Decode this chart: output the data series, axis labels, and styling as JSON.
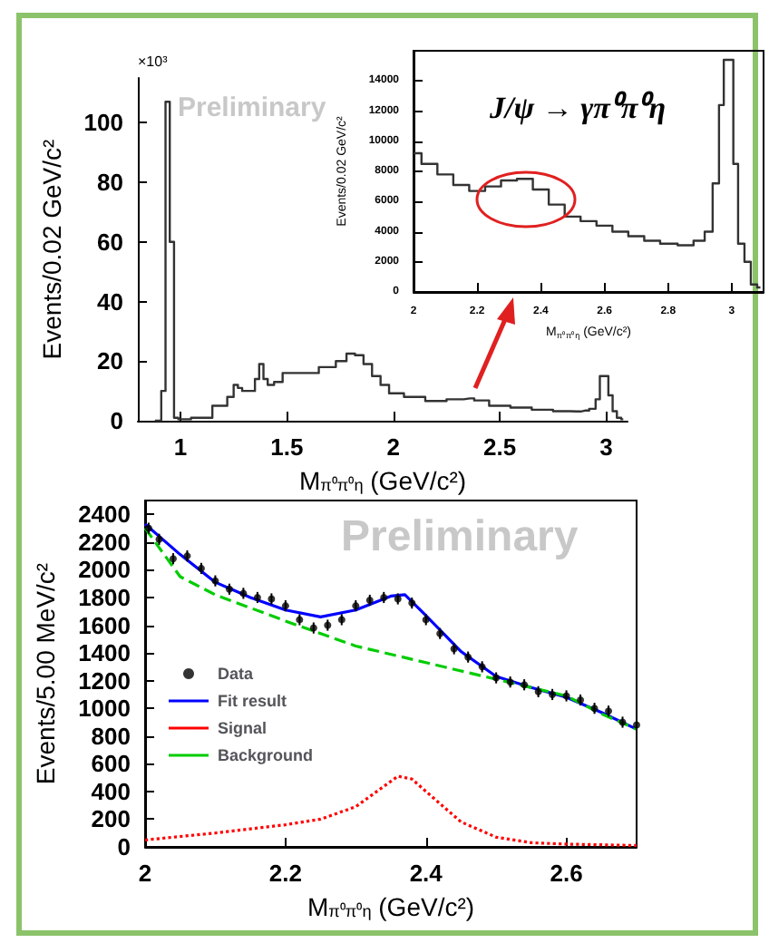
{
  "chart_data": [
    {
      "type": "step",
      "ylabel": "Events/0.02 GeV/c²",
      "xlabel": "M$_{π⁰π⁰η}$ (GeV/c²)",
      "annotations": [
        "×10³",
        "Preliminary"
      ],
      "color": "#333333",
      "x": [
        0.88,
        0.9,
        0.92,
        0.94,
        0.96,
        0.98,
        1.0,
        1.1,
        1.2,
        1.24,
        1.26,
        1.28,
        1.3,
        1.34,
        1.36,
        1.38,
        1.4,
        1.42,
        1.46,
        1.5,
        1.6,
        1.7,
        1.76,
        1.8,
        1.84,
        1.88,
        1.92,
        1.96,
        2.0,
        2.1,
        2.2,
        2.3,
        2.36,
        2.4,
        2.5,
        2.6,
        2.7,
        2.8,
        2.86,
        2.9,
        2.94,
        2.96,
        2.98,
        3.0,
        3.02,
        3.04,
        3.06,
        3.08
      ],
      "values": [
        0,
        0,
        10,
        107,
        60,
        1,
        0.5,
        1,
        5,
        8,
        12,
        11,
        10,
        10,
        14,
        19,
        14,
        12,
        13,
        16,
        16,
        18,
        20,
        22.5,
        22,
        19,
        15,
        12,
        9.2,
        8,
        6.6,
        7.2,
        7.5,
        6.8,
        5,
        4.4,
        3.7,
        3.2,
        3.1,
        3.4,
        4,
        7.2,
        15,
        15,
        8.5,
        3.2,
        1,
        0.5
      ],
      "xlim": [
        0.8,
        3.1
      ],
      "xticks": [
        1,
        1.5,
        2,
        2.5,
        3
      ],
      "ylim": [
        0,
        115
      ],
      "yticks": [
        0,
        20,
        40,
        60,
        80,
        100
      ]
    },
    {
      "type": "step",
      "ylabel": "Events/0.02 GeV/c²",
      "xlabel": "M$_{π⁰π⁰η}$ (GeV/c²)",
      "annotations": [
        "J/ψ → γπ⁰π⁰η"
      ],
      "color": "#333333",
      "x": [
        2.0,
        2.05,
        2.1,
        2.15,
        2.2,
        2.25,
        2.3,
        2.35,
        2.4,
        2.45,
        2.5,
        2.55,
        2.6,
        2.65,
        2.7,
        2.75,
        2.8,
        2.86,
        2.9,
        2.93,
        2.95,
        2.97,
        2.98,
        3.0,
        3.01,
        3.03,
        3.05,
        3.07,
        3.09
      ],
      "values": [
        9200,
        8500,
        7800,
        7100,
        6700,
        7000,
        7400,
        7500,
        6800,
        5800,
        5000,
        4700,
        4400,
        4000,
        3700,
        3400,
        3200,
        3100,
        3400,
        4000,
        7200,
        12400,
        15400,
        15400,
        8500,
        3200,
        2000,
        500,
        300
      ],
      "xlim": [
        2,
        3.1
      ],
      "xticks": [
        2,
        2.2,
        2.4,
        2.6,
        2.8,
        3
      ],
      "ylim": [
        0,
        16000
      ],
      "yticks": [
        0,
        2000,
        4000,
        6000,
        8000,
        10000,
        12000,
        14000
      ]
    },
    {
      "type": "line",
      "ylabel": "Events/5.00 MeV/c²",
      "xlabel": "M$_{π⁰π⁰η}$ (GeV/c²)",
      "annotations": [
        "Preliminary"
      ],
      "legend": "left",
      "xlim": [
        2,
        2.7
      ],
      "xticks": [
        2,
        2.2,
        2.4,
        2.6
      ],
      "ylim": [
        0,
        2500
      ],
      "yticks": [
        0,
        200,
        400,
        600,
        800,
        1000,
        1200,
        1400,
        1600,
        1800,
        2000,
        2200,
        2400
      ],
      "series": [
        {
          "name": "Data",
          "type": "scatter",
          "marker": "circle",
          "color": "#000000",
          "x": [
            2.005,
            2.02,
            2.04,
            2.06,
            2.08,
            2.1,
            2.12,
            2.14,
            2.16,
            2.18,
            2.2,
            2.22,
            2.24,
            2.26,
            2.28,
            2.3,
            2.32,
            2.34,
            2.36,
            2.38,
            2.4,
            2.42,
            2.44,
            2.46,
            2.48,
            2.5,
            2.52,
            2.54,
            2.56,
            2.58,
            2.6,
            2.62,
            2.64,
            2.66,
            2.68,
            2.7
          ],
          "values": [
            2300,
            2220,
            2080,
            2100,
            2010,
            1920,
            1860,
            1830,
            1800,
            1790,
            1740,
            1640,
            1580,
            1600,
            1640,
            1740,
            1780,
            1800,
            1790,
            1760,
            1640,
            1540,
            1430,
            1370,
            1300,
            1220,
            1190,
            1170,
            1120,
            1100,
            1090,
            1060,
            1000,
            980,
            900,
            880
          ],
          "errors": [
            40,
            40,
            40,
            40,
            40,
            40,
            40,
            40,
            40,
            40,
            40,
            40,
            40,
            40,
            40,
            40,
            40,
            40,
            40,
            40,
            40,
            40,
            40,
            40,
            40,
            40,
            40,
            40,
            40,
            40,
            40,
            40,
            40,
            40,
            40,
            40
          ]
        },
        {
          "name": "Fit result",
          "line_style": "solid",
          "color": "#0000ff",
          "x": [
            2.0,
            2.05,
            2.1,
            2.15,
            2.2,
            2.25,
            2.3,
            2.35,
            2.37,
            2.4,
            2.45,
            2.5,
            2.55,
            2.6,
            2.65,
            2.7
          ],
          "values": [
            2330,
            2110,
            1910,
            1800,
            1710,
            1660,
            1710,
            1810,
            1820,
            1670,
            1410,
            1230,
            1150,
            1080,
            970,
            850
          ]
        },
        {
          "name": "Signal",
          "line_style": "dotted",
          "color": "#ff0000",
          "x": [
            2.0,
            2.1,
            2.2,
            2.25,
            2.3,
            2.33,
            2.36,
            2.38,
            2.4,
            2.45,
            2.5,
            2.55,
            2.6,
            2.7
          ],
          "values": [
            50,
            100,
            160,
            200,
            290,
            400,
            510,
            490,
            400,
            180,
            70,
            30,
            20,
            10
          ]
        },
        {
          "name": "Background",
          "line_style": "dashed",
          "color": "#00cc00",
          "x": [
            2.0,
            2.05,
            2.1,
            2.2,
            2.3,
            2.4,
            2.5,
            2.6,
            2.65,
            2.7
          ],
          "values": [
            2300,
            1950,
            1820,
            1630,
            1450,
            1330,
            1210,
            1090,
            960,
            850
          ]
        }
      ]
    }
  ]
}
